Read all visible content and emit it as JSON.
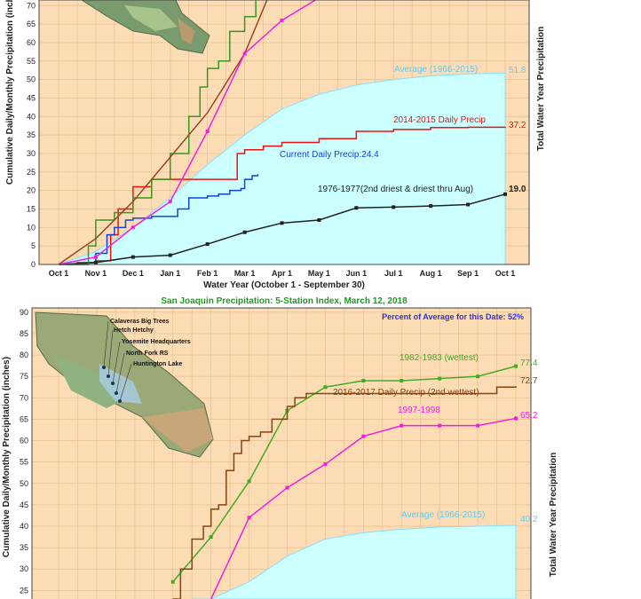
{
  "chart_data": [
    {
      "type": "line",
      "title": "",
      "xlabel": "Water Year (October 1 - September 30)",
      "ylabel": "Cumulative Daily/Monthly Precipitation (inches)",
      "ylabel_right": "Total Water Year Precipitation",
      "x_ticks": [
        "Oct 1",
        "Nov 1",
        "Dec 1",
        "Jan 1",
        "Feb 1",
        "Mar 1",
        "Apr 1",
        "May 1",
        "Jun 1",
        "Jul 1",
        "Aug 1",
        "Sep 1",
        "Oct 1"
      ],
      "y_ticks": [
        0,
        5,
        10,
        15,
        20,
        25,
        30,
        35,
        40,
        45,
        50,
        55,
        60,
        65,
        70
      ],
      "ylim": [
        0,
        70
      ],
      "grid": true,
      "colors": {
        "plot_bg": "#fbdcb4",
        "grid": "#e8c090",
        "average_fill": "#ccffff"
      },
      "series": [
        {
          "name": "Average (1966-2015)",
          "end_label": "51.8",
          "color": "#66ccee",
          "kind": "area",
          "x": [
            0,
            1,
            2,
            3,
            4,
            5,
            6,
            7,
            8,
            9,
            10,
            11,
            12
          ],
          "y": [
            0,
            3.5,
            10,
            18,
            27,
            35,
            42,
            46,
            48.5,
            50,
            51,
            51.5,
            51.8
          ]
        },
        {
          "name": "2014-2015 Daily Precip",
          "end_label": "37.2",
          "color": "#ee1111",
          "kind": "step",
          "x": [
            0,
            0.5,
            1,
            1.4,
            1.6,
            2,
            2.5,
            3,
            3.2,
            4,
            4.8,
            5,
            5.5,
            6,
            7,
            8,
            9,
            10,
            11,
            12
          ],
          "y": [
            0,
            0.5,
            1,
            8,
            15,
            21,
            23,
            23,
            23,
            23,
            30,
            31,
            32,
            33,
            34,
            36,
            36.5,
            37,
            37.1,
            37.2
          ]
        },
        {
          "name": "Current Daily Precip:24.4",
          "color": "#1144dd",
          "kind": "step",
          "x": [
            0,
            0.8,
            1,
            1.3,
            1.5,
            1.8,
            2,
            2.5,
            3,
            3.2,
            3.5,
            4,
            4.3,
            4.6,
            4.9,
            5,
            5.2,
            5.35
          ],
          "y": [
            0,
            0.5,
            3,
            8,
            10,
            12,
            12.5,
            13,
            13,
            15,
            18,
            18.5,
            19,
            20,
            20.5,
            23,
            24,
            24.4
          ]
        },
        {
          "name": "1976-1977(2nd driest & driest thru Aug)",
          "end_label": "19.0",
          "color": "#222222",
          "kind": "marked",
          "x": [
            0,
            1,
            2,
            3,
            4,
            5,
            6,
            7,
            8,
            9,
            10,
            11,
            12
          ],
          "y": [
            0,
            0.5,
            2,
            2.5,
            5.5,
            8.7,
            11.2,
            12,
            15.3,
            15.5,
            15.8,
            16.2,
            19
          ]
        },
        {
          "name": "",
          "color": "#339922",
          "kind": "step",
          "x": [
            0,
            0.8,
            1,
            1.5,
            2,
            2.5,
            3,
            3.5,
            3.8,
            4,
            4.3,
            4.6,
            5,
            5.3
          ],
          "y": [
            0,
            5,
            12,
            14,
            18,
            23,
            30,
            40,
            48,
            53,
            55,
            63,
            67,
            72
          ]
        },
        {
          "name": "",
          "color": "#994422",
          "kind": "line",
          "x": [
            0,
            1,
            2,
            3,
            4,
            5,
            5.6
          ],
          "y": [
            0,
            7,
            17,
            29,
            41,
            57,
            72
          ]
        },
        {
          "name": "",
          "color": "#ee22dd",
          "kind": "marked",
          "x": [
            0,
            1,
            2,
            3,
            4,
            5,
            6,
            6.9
          ],
          "y": [
            0,
            2,
            10,
            17,
            36,
            57,
            66,
            72
          ]
        }
      ]
    },
    {
      "type": "line",
      "title": "San Joaquin Precipitation: 5-Station Index, March 12, 2018",
      "subtitle": "Percent of Average for this Date: 52%",
      "xlabel": "",
      "ylabel": "Cumulative Daily/Monthly Precipitation (inches)",
      "ylabel_right": "Total Water Year Precipitation",
      "y_ticks": [
        25,
        30,
        35,
        40,
        45,
        50,
        55,
        60,
        65,
        70,
        75,
        80,
        85,
        90
      ],
      "ylim": [
        23,
        90
      ],
      "grid": true,
      "stations": [
        "Calaveras Big Trees",
        "Hetch Hetchy",
        "Yosemite Headquarters",
        "North Fork RS",
        "Huntington Lake"
      ],
      "series": [
        {
          "name": "Average (1966-2015)",
          "end_label": "40.2",
          "color": "#66ccee",
          "kind": "area",
          "x": [
            3.5,
            4,
            5,
            6,
            7,
            8,
            9,
            10,
            11,
            12
          ],
          "y": [
            20,
            22,
            27,
            33,
            37,
            38.5,
            39.3,
            39.8,
            40,
            40.2
          ]
        },
        {
          "name": "1982-1983 (wettest)",
          "end_label": "77.4",
          "color": "#44aa22",
          "kind": "marked",
          "x": [
            3,
            4,
            5,
            6,
            7,
            8,
            9,
            10,
            11,
            12
          ],
          "y": [
            27,
            37.5,
            50.5,
            67,
            72.5,
            74,
            74,
            74.5,
            75,
            77.4
          ]
        },
        {
          "name": "2016-2017 Daily Precip (2nd wettest)",
          "end_label": "72.7",
          "color": "#884411",
          "kind": "step",
          "x": [
            3,
            3.2,
            3.5,
            3.8,
            4,
            4.2,
            4.4,
            4.6,
            4.8,
            5,
            5.3,
            5.6,
            6,
            6.2,
            6.5,
            7,
            8,
            9,
            10,
            11,
            11.5,
            12
          ],
          "y": [
            23,
            30,
            37,
            40,
            44,
            45,
            53,
            57,
            60,
            61,
            62,
            65,
            68,
            70,
            71,
            71,
            71,
            71,
            71,
            71,
            72.5,
            72.7
          ]
        },
        {
          "name": "1997-1998",
          "end_label": "65.2",
          "color": "#ee22dd",
          "kind": "marked",
          "x": [
            4,
            5,
            6,
            7,
            8,
            9,
            10,
            11,
            12
          ],
          "y": [
            23,
            42,
            49,
            54.5,
            61,
            63.5,
            63.5,
            63.5,
            65.2
          ]
        }
      ]
    }
  ]
}
